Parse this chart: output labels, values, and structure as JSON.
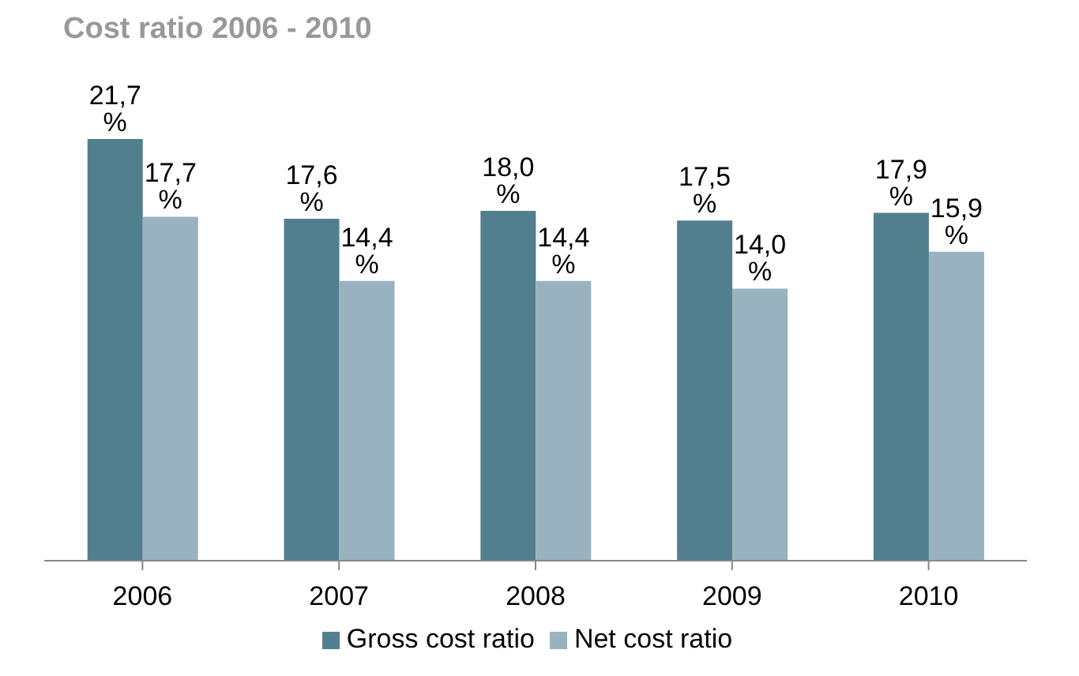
{
  "chart_data": {
    "type": "bar",
    "title": "Cost ratio 2006 - 2010",
    "categories": [
      "2006",
      "2007",
      "2008",
      "2009",
      "2010"
    ],
    "series": [
      {
        "name": "Gross cost ratio",
        "color": "#527f8e",
        "values": [
          21.7,
          17.6,
          18.0,
          17.5,
          17.9
        ],
        "value_labels": [
          "21,7 %",
          "17,6 %",
          "18,0 %",
          "17,5 %",
          "17,9 %"
        ]
      },
      {
        "name": "Net cost ratio",
        "color": "#98b3bf",
        "values": [
          17.7,
          14.4,
          14.4,
          14.0,
          15.9
        ],
        "value_labels": [
          "17,7 %",
          "14,4 %",
          "14,4 %",
          "14,0 %",
          "15,9 %"
        ]
      }
    ],
    "legend": "bottom",
    "grid": false
  }
}
